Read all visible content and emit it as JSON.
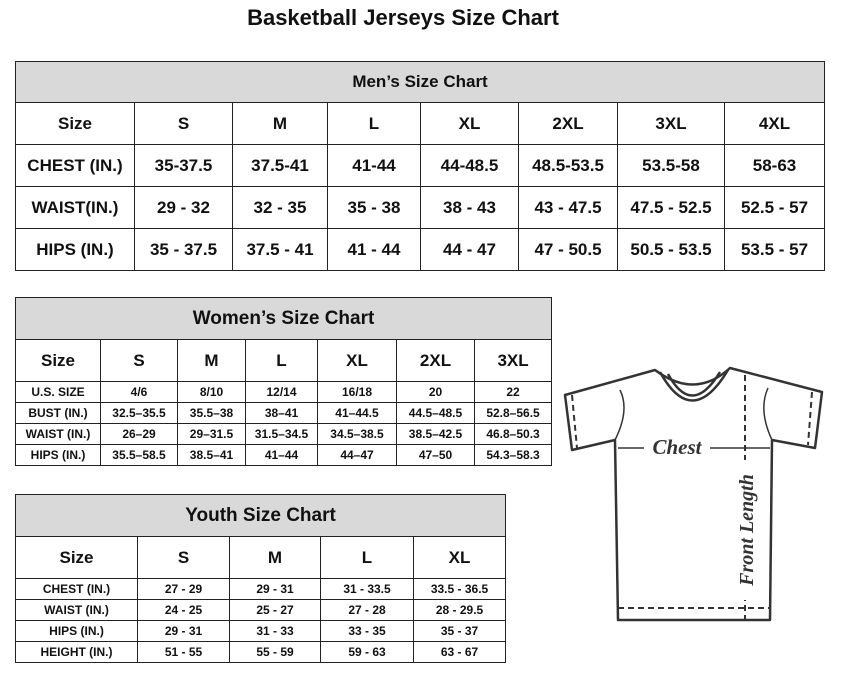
{
  "title": "Basketball Jerseys Size Chart",
  "men": {
    "title": "Men’s Size Chart",
    "sizes": [
      "Size",
      "S",
      "M",
      "L",
      "XL",
      "2XL",
      "3XL",
      "4XL"
    ],
    "rows": [
      [
        "CHEST (IN.)",
        "35-37.5",
        "37.5-41",
        "41-44",
        "44-48.5",
        "48.5-53.5",
        "53.5-58",
        "58-63"
      ],
      [
        "WAIST(IN.)",
        "29 - 32",
        "32 - 35",
        "35 - 38",
        "38 - 43",
        "43 - 47.5",
        "47.5 - 52.5",
        "52.5 - 57"
      ],
      [
        "HIPS (IN.)",
        "35 - 37.5",
        "37.5 - 41",
        "41 - 44",
        "44 - 47",
        "47 - 50.5",
        "50.5 - 53.5",
        "53.5 - 57"
      ]
    ]
  },
  "women": {
    "title": "Women’s Size Chart",
    "sizes": [
      "Size",
      "S",
      "M",
      "L",
      "XL",
      "2XL",
      "3XL"
    ],
    "rows": [
      [
        "U.S. SIZE",
        "4/6",
        "8/10",
        "12/14",
        "16/18",
        "20",
        "22"
      ],
      [
        "BUST (IN.)",
        "32.5–35.5",
        "35.5–38",
        "38–41",
        "41–44.5",
        "44.5–48.5",
        "52.8–56.5"
      ],
      [
        "WAIST (IN.)",
        "26–29",
        "29–31.5",
        "31.5–34.5",
        "34.5–38.5",
        "38.5–42.5",
        "46.8–50.3"
      ],
      [
        "HIPS (IN.)",
        "35.5–58.5",
        "38.5–41",
        "41–44",
        "44–47",
        "47–50",
        "54.3–58.3"
      ]
    ]
  },
  "youth": {
    "title": "Youth Size Chart",
    "sizes": [
      "Size",
      "S",
      "M",
      "L",
      "XL"
    ],
    "rows": [
      [
        "CHEST (IN.)",
        "27 - 29",
        "29 - 31",
        "31 - 33.5",
        "33.5 - 36.5"
      ],
      [
        "WAIST (IN.)",
        "24 - 25",
        "25 - 27",
        "27 - 28",
        "28 - 29.5"
      ],
      [
        "HIPS (IN.)",
        "29 - 31",
        "31 - 33",
        "33 - 35",
        "35 - 37"
      ],
      [
        "HEIGHT (IN.)",
        "51 - 55",
        "55 - 59",
        "59 - 63",
        "63 - 67"
      ]
    ]
  },
  "diagram": {
    "chest_label": "Chest",
    "length_label": "Front Length"
  }
}
